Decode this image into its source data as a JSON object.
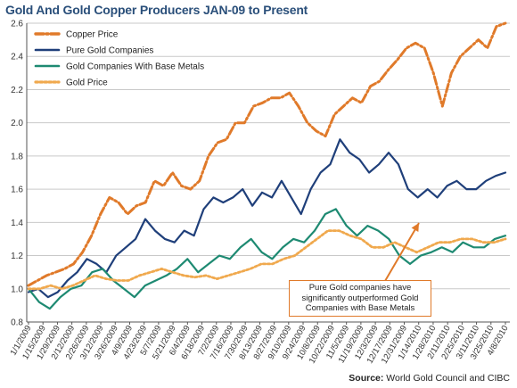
{
  "chart_data": {
    "type": "line",
    "title": "Gold And Gold Copper Producers JAN-09 to Present",
    "source_label": "Source:",
    "source_text": "World Gold Council and CIBC",
    "annotation": "Pure Gold companies have significantly outperformed Gold Companies with Base Metals",
    "ylim": [
      0.8,
      2.6
    ],
    "yticks": [
      "0.8",
      "1.0",
      "1.2",
      "1.4",
      "1.6",
      "1.8",
      "2.0",
      "2.2",
      "2.4",
      "2.6"
    ],
    "xtick_labels": [
      "1/1/2009",
      "1/15/2009",
      "1/29/2009",
      "2/12/2009",
      "2/26/2009",
      "3/12/2009",
      "3/26/2009",
      "4/9/2009",
      "4/23/2009",
      "5/7/2009",
      "5/21/2009",
      "6/4/2009",
      "6/18/2009",
      "7/2/2009",
      "7/16/2009",
      "7/30/2009",
      "8/13/2009",
      "8/27/2009",
      "9/10/2009",
      "9/24/2009",
      "10/8/2009",
      "10/22/2009",
      "11/5/2009",
      "11/19/2009",
      "12/3/2009",
      "12/17/2009",
      "12/31/2009",
      "1/14/2010",
      "1/28/2010",
      "2/11/2010",
      "2/25/2010",
      "3/11/2010",
      "3/25/2010",
      "4/8/2010"
    ],
    "grid": true,
    "legend_position": "top-left",
    "series": [
      {
        "name": "Copper Price",
        "color": "#e07a2a",
        "style": "dashdot",
        "values": [
          1.02,
          1.05,
          1.08,
          1.1,
          1.12,
          1.15,
          1.22,
          1.32,
          1.45,
          1.55,
          1.52,
          1.45,
          1.5,
          1.52,
          1.65,
          1.62,
          1.7,
          1.62,
          1.6,
          1.65,
          1.8,
          1.88,
          1.9,
          2.0,
          2.0,
          2.1,
          2.12,
          2.15,
          2.15,
          2.18,
          2.1,
          2.0,
          1.95,
          1.92,
          2.05,
          2.1,
          2.15,
          2.12,
          2.22,
          2.25,
          2.32,
          2.38,
          2.45,
          2.48,
          2.45,
          2.3,
          2.1,
          2.3,
          2.4,
          2.45,
          2.5,
          2.45,
          2.58,
          2.6
        ]
      },
      {
        "name": "Pure Gold Companies",
        "color": "#1f3f7a",
        "style": "solid",
        "values": [
          0.98,
          1.0,
          0.95,
          0.98,
          1.05,
          1.1,
          1.18,
          1.15,
          1.1,
          1.2,
          1.25,
          1.3,
          1.42,
          1.35,
          1.3,
          1.28,
          1.35,
          1.32,
          1.48,
          1.55,
          1.52,
          1.55,
          1.6,
          1.5,
          1.58,
          1.55,
          1.65,
          1.55,
          1.45,
          1.6,
          1.7,
          1.75,
          1.9,
          1.82,
          1.78,
          1.7,
          1.75,
          1.82,
          1.75,
          1.6,
          1.55,
          1.6,
          1.55,
          1.62,
          1.65,
          1.6,
          1.6,
          1.65,
          1.68,
          1.7
        ]
      },
      {
        "name": "Gold Companies With Base Metals",
        "color": "#1e8a72",
        "style": "solid",
        "values": [
          1.0,
          0.92,
          0.88,
          0.95,
          1.0,
          1.02,
          1.1,
          1.12,
          1.05,
          1.0,
          0.95,
          1.02,
          1.05,
          1.08,
          1.12,
          1.18,
          1.1,
          1.15,
          1.2,
          1.18,
          1.25,
          1.3,
          1.22,
          1.18,
          1.25,
          1.3,
          1.28,
          1.35,
          1.45,
          1.48,
          1.38,
          1.32,
          1.38,
          1.35,
          1.3,
          1.2,
          1.15,
          1.2,
          1.22,
          1.25,
          1.22,
          1.28,
          1.25,
          1.25,
          1.3,
          1.32
        ]
      },
      {
        "name": "Gold Price",
        "color": "#f0a94e",
        "style": "dotted",
        "values": [
          1.0,
          1.0,
          1.02,
          1.0,
          1.02,
          1.05,
          1.08,
          1.06,
          1.05,
          1.05,
          1.08,
          1.1,
          1.12,
          1.1,
          1.08,
          1.07,
          1.08,
          1.06,
          1.08,
          1.1,
          1.12,
          1.15,
          1.15,
          1.18,
          1.2,
          1.25,
          1.3,
          1.35,
          1.35,
          1.32,
          1.3,
          1.25,
          1.25,
          1.28,
          1.25,
          1.22,
          1.25,
          1.28,
          1.28,
          1.3,
          1.3,
          1.28,
          1.28,
          1.3
        ]
      }
    ]
  }
}
